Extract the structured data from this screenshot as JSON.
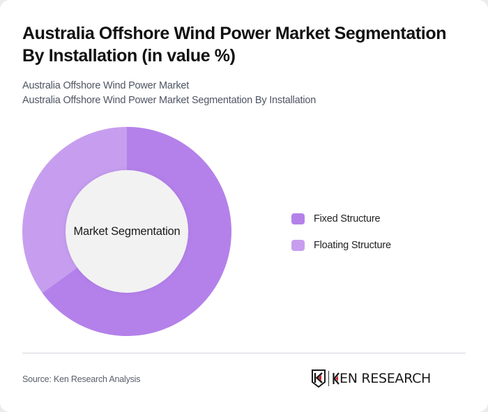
{
  "header": {
    "title": "Australia Offshore Wind Power Market Segmentation By Installation (in value %)",
    "subtitle_line1": "Australia Offshore Wind Power Market",
    "subtitle_line2": "Australia Offshore Wind Power Market Segmentation By Installation"
  },
  "chart": {
    "center_label": "Market Segmentation"
  },
  "legend": {
    "items": [
      {
        "label": "Fixed Structure",
        "color": "#b481ea"
      },
      {
        "label": "Floating Structure",
        "color": "#c79eef"
      }
    ]
  },
  "footer": {
    "source": "Source: Ken Research Analysis",
    "logo_text": "KEN RESEARCH",
    "logo_icon": "ken-research-shield-k-icon",
    "logo_accent_color": "#d0202a"
  },
  "colors": {
    "inner_circle": "#f2f2f2",
    "background": "#ffffff"
  },
  "chart_data": {
    "type": "pie",
    "variant": "donut",
    "title": "Australia Offshore Wind Power Market Segmentation By Installation (in value %)",
    "subtitle": "Australia Offshore Wind Power Market / Australia Offshore Wind Power Market Segmentation By Installation",
    "center_label": "Market Segmentation",
    "categories": [
      "Fixed Structure",
      "Floating Structure"
    ],
    "values": [
      65,
      35
    ],
    "colors": [
      "#b481ea",
      "#c79eef"
    ],
    "unit": "%",
    "legend_position": "right",
    "start_angle": "12 o'clock, clockwise",
    "source": "Source: Ken Research Analysis"
  }
}
